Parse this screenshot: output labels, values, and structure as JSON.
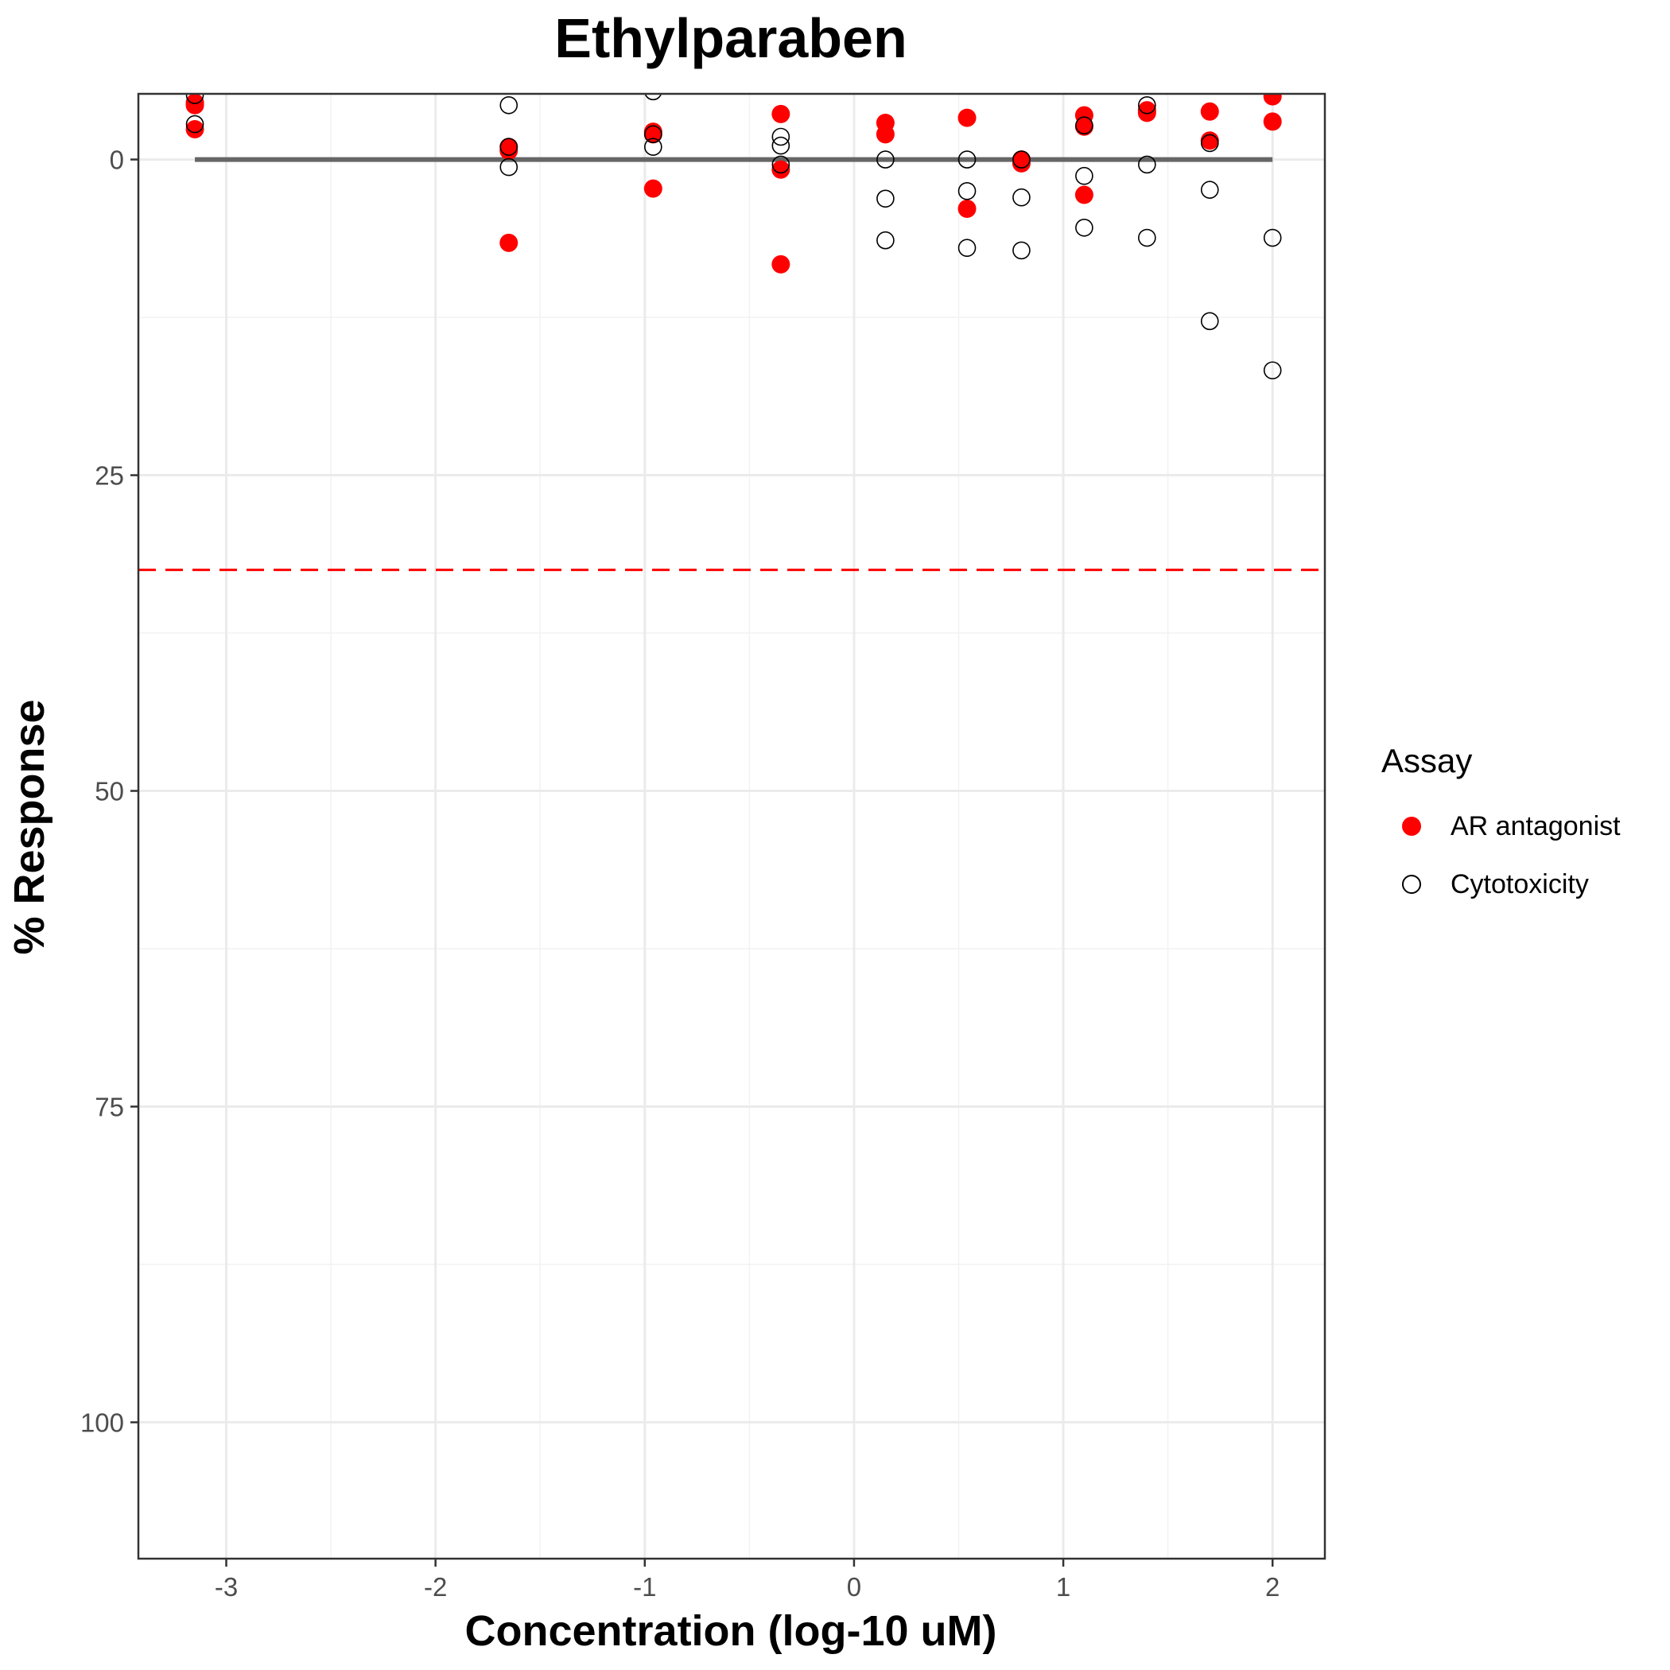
{
  "chart_data": {
    "type": "scatter",
    "title": "Ethylparaben",
    "xlabel": "Concentration (log-10 uM)",
    "ylabel": "% Response",
    "xlim": [
      -3.42,
      2.25
    ],
    "ylim": [
      -5.2,
      110.8
    ],
    "y_reversed": true,
    "x_ticks": [
      -3,
      -2,
      -1,
      0,
      1,
      2
    ],
    "x_tick_labels": [
      "-3",
      "-2",
      "-1",
      "0",
      "1",
      "2"
    ],
    "y_ticks": [
      0,
      25,
      50,
      75,
      100
    ],
    "y_tick_labels": [
      "0",
      "25",
      "50",
      "75",
      "100"
    ],
    "grid": true,
    "legend": {
      "title": "Assay",
      "position": "right",
      "entries": [
        "AR antagonist",
        "Cytotoxicity"
      ]
    },
    "fit_line": {
      "x": [
        -3.15,
        2.0
      ],
      "y": [
        0,
        0
      ],
      "color": "#666666"
    },
    "threshold_line": {
      "y": 32.5,
      "style": "dashed",
      "color": "#ff0000"
    },
    "series": [
      {
        "name": "AR antagonist",
        "marker": "filled-circle",
        "color": "#ff0000",
        "x": [
          -3.15,
          -3.15,
          -3.15,
          -1.65,
          -1.65,
          -1.65,
          -0.96,
          -0.96,
          -0.96,
          -0.35,
          -0.35,
          -0.35,
          0.15,
          0.15,
          0.54,
          0.54,
          0.8,
          0.8,
          1.1,
          1.1,
          1.1,
          1.4,
          1.4,
          1.7,
          1.7,
          2.0,
          2.0
        ],
        "y": [
          -4.5,
          -4.3,
          -2.4,
          -1.0,
          -0.7,
          6.6,
          -2.2,
          -2.0,
          2.3,
          -3.6,
          0.8,
          8.3,
          -2.9,
          -2.0,
          -3.3,
          3.9,
          0.0,
          0.3,
          -3.5,
          -2.6,
          2.8,
          -3.9,
          -3.7,
          -3.8,
          -1.5,
          -5.0,
          -3.0
        ]
      },
      {
        "name": "Cytotoxicity",
        "marker": "open-circle",
        "color": "#000000",
        "x": [
          -3.15,
          -3.15,
          -1.65,
          -1.65,
          -1.65,
          -0.96,
          -0.96,
          -0.96,
          -0.35,
          -0.35,
          -0.35,
          0.15,
          0.15,
          0.15,
          0.54,
          0.54,
          0.54,
          0.8,
          0.8,
          0.8,
          1.1,
          1.1,
          1.1,
          1.4,
          1.4,
          1.4,
          1.7,
          1.7,
          1.7,
          2.0,
          2.0
        ],
        "y": [
          -5.1,
          -2.8,
          -4.3,
          -1.0,
          0.6,
          -5.4,
          -2.0,
          -1.0,
          -1.8,
          -1.1,
          0.4,
          0.0,
          3.1,
          6.4,
          0.0,
          2.5,
          7.0,
          0.0,
          3.0,
          7.2,
          -2.7,
          1.3,
          5.4,
          -4.3,
          0.4,
          6.2,
          -1.3,
          2.4,
          12.8,
          6.2,
          16.7
        ]
      }
    ]
  }
}
